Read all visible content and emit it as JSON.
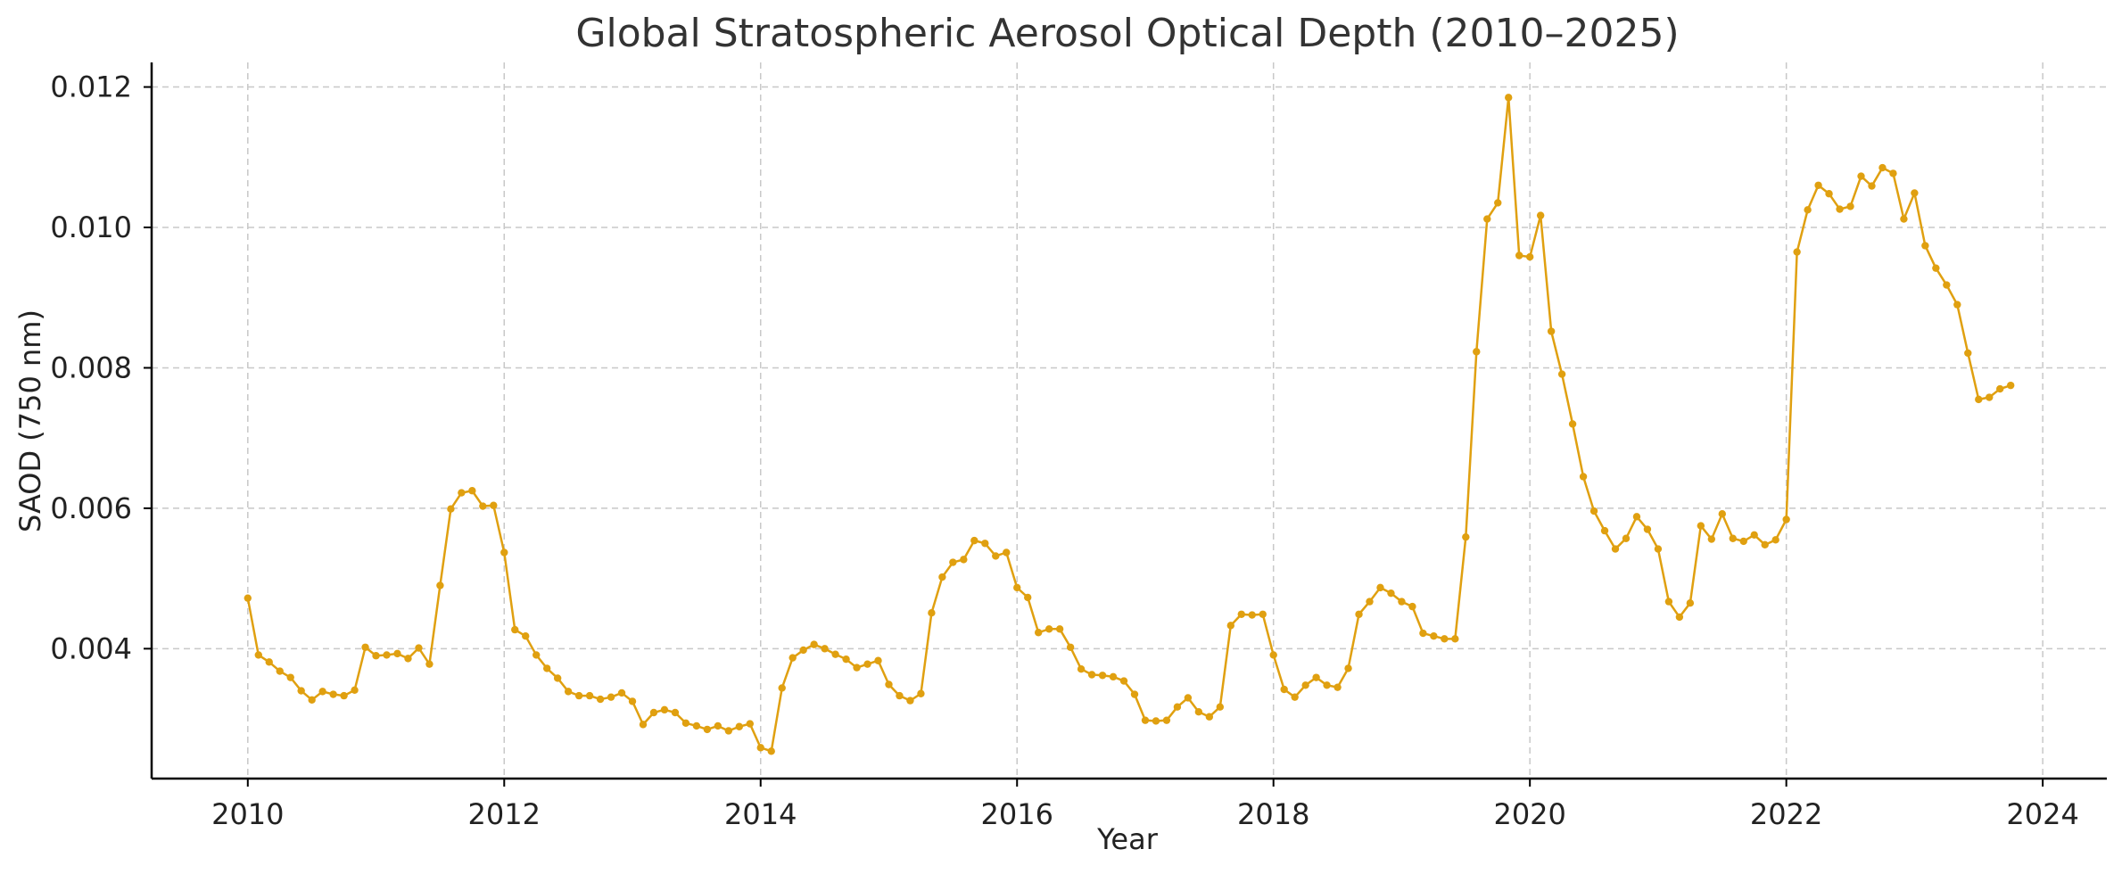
{
  "chart_data": {
    "type": "line",
    "title": "Global Stratospheric Aerosol Optical Depth (2010–2025)",
    "xlabel": "Year",
    "ylabel": "SAOD (750 nm)",
    "xlim": [
      "2009-04",
      "2024-07"
    ],
    "ylim": [
      0.00215,
      0.01235
    ],
    "x_ticks": [
      "2010",
      "2012",
      "2014",
      "2016",
      "2018",
      "2020",
      "2022",
      "2024"
    ],
    "y_ticks": [
      "0.004",
      "0.006",
      "0.008",
      "0.010",
      "0.012"
    ],
    "grid": true,
    "legend": "none",
    "color": "#E0A010",
    "series": [
      {
        "start": "2010-01",
        "frequency": "monthly",
        "x": [
          "2010-01",
          "2010-02",
          "2010-03",
          "2010-04",
          "2010-05",
          "2010-06",
          "2010-07",
          "2010-08",
          "2010-09",
          "2010-10",
          "2010-11",
          "2010-12",
          "2011-01",
          "2011-02",
          "2011-03",
          "2011-04",
          "2011-05",
          "2011-06",
          "2011-07",
          "2011-08",
          "2011-09",
          "2011-10",
          "2011-11",
          "2011-12",
          "2012-01",
          "2012-02",
          "2012-03",
          "2012-04",
          "2012-05",
          "2012-06",
          "2012-07",
          "2012-08",
          "2012-09",
          "2012-10",
          "2012-11",
          "2012-12",
          "2013-01",
          "2013-02",
          "2013-03",
          "2013-04",
          "2013-05",
          "2013-06",
          "2013-07",
          "2013-08",
          "2013-09",
          "2013-10",
          "2013-11",
          "2013-12",
          "2014-01",
          "2014-02",
          "2014-03",
          "2014-04",
          "2014-05",
          "2014-06",
          "2014-07",
          "2014-08",
          "2014-09",
          "2014-10",
          "2014-11",
          "2014-12",
          "2015-01",
          "2015-02",
          "2015-03",
          "2015-04",
          "2015-05",
          "2015-06",
          "2015-07",
          "2015-08",
          "2015-09",
          "2015-10",
          "2015-11",
          "2015-12",
          "2016-01",
          "2016-02",
          "2016-03",
          "2016-04",
          "2016-05",
          "2016-06",
          "2016-07",
          "2016-08",
          "2016-09",
          "2016-10",
          "2016-11",
          "2016-12",
          "2017-01",
          "2017-02",
          "2017-03",
          "2017-04",
          "2017-05",
          "2017-06",
          "2017-07",
          "2017-08",
          "2017-09",
          "2017-10",
          "2017-11",
          "2017-12",
          "2018-01",
          "2018-02",
          "2018-03",
          "2018-04",
          "2018-05",
          "2018-06",
          "2018-07",
          "2018-08",
          "2018-09",
          "2018-10",
          "2018-11",
          "2018-12",
          "2019-01",
          "2019-02",
          "2019-03",
          "2019-04",
          "2019-05",
          "2019-06",
          "2019-07",
          "2019-08",
          "2019-09",
          "2019-10",
          "2019-11",
          "2019-12",
          "2020-01",
          "2020-02",
          "2020-03",
          "2020-04",
          "2020-05",
          "2020-06",
          "2020-07",
          "2020-08",
          "2020-09",
          "2020-10",
          "2020-11",
          "2020-12",
          "2021-01",
          "2021-02",
          "2021-03",
          "2021-04",
          "2021-05",
          "2021-06",
          "2021-07",
          "2021-08",
          "2021-09",
          "2021-10",
          "2021-11",
          "2021-12",
          "2022-01",
          "2022-02",
          "2022-03",
          "2022-04",
          "2022-05",
          "2022-06",
          "2022-07",
          "2022-08",
          "2022-09",
          "2022-10",
          "2022-11",
          "2022-12",
          "2023-01",
          "2023-02",
          "2023-03",
          "2023-04",
          "2023-05",
          "2023-06",
          "2023-07",
          "2023-08",
          "2023-09",
          "2023-10"
        ],
        "values": [
          0.00472,
          0.00391,
          0.00381,
          0.00368,
          0.00359,
          0.0034,
          0.00327,
          0.00339,
          0.00335,
          0.00333,
          0.00341,
          0.00402,
          0.0039,
          0.00391,
          0.00393,
          0.00386,
          0.00401,
          0.00378,
          0.0049,
          0.00599,
          0.00622,
          0.00625,
          0.00603,
          0.00604,
          0.00537,
          0.00427,
          0.00418,
          0.00391,
          0.00372,
          0.00358,
          0.00339,
          0.00333,
          0.00333,
          0.00328,
          0.00331,
          0.00337,
          0.00325,
          0.00292,
          0.00309,
          0.00313,
          0.00309,
          0.00294,
          0.0029,
          0.00285,
          0.0029,
          0.00283,
          0.00289,
          0.00293,
          0.00259,
          0.00254,
          0.00344,
          0.00387,
          0.00398,
          0.00406,
          0.004,
          0.00392,
          0.00385,
          0.00373,
          0.00378,
          0.00383,
          0.00349,
          0.00333,
          0.00326,
          0.00336,
          0.00451,
          0.00502,
          0.00523,
          0.00527,
          0.00554,
          0.0055,
          0.00532,
          0.00537,
          0.00487,
          0.00473,
          0.00423,
          0.00428,
          0.00428,
          0.00402,
          0.00371,
          0.00363,
          0.00362,
          0.0036,
          0.00354,
          0.00335,
          0.00298,
          0.00297,
          0.00298,
          0.00317,
          0.0033,
          0.0031,
          0.00303,
          0.00317,
          0.00433,
          0.00449,
          0.00448,
          0.00449,
          0.00391,
          0.00342,
          0.00331,
          0.00348,
          0.00359,
          0.00348,
          0.00345,
          0.00372,
          0.00449,
          0.00467,
          0.00487,
          0.00479,
          0.00467,
          0.0046,
          0.00422,
          0.00418,
          0.00414,
          0.00414,
          0.00559,
          0.00823,
          0.01012,
          0.01035,
          0.01185,
          0.0096,
          0.00958,
          0.01017,
          0.00852,
          0.00791,
          0.0072,
          0.00645,
          0.00596,
          0.00568,
          0.00542,
          0.00557,
          0.00588,
          0.0057,
          0.00542,
          0.00467,
          0.00445,
          0.00465,
          0.00575,
          0.00556,
          0.00592,
          0.00557,
          0.00553,
          0.00562,
          0.00548,
          0.00555,
          0.00584,
          0.00965,
          0.01025,
          0.0106,
          0.01048,
          0.01026,
          0.0103,
          0.01073,
          0.01059,
          0.01085,
          0.01077,
          0.01012,
          0.01049,
          0.00974,
          0.00942,
          0.00918,
          0.0089,
          0.00821,
          0.00755,
          0.00758,
          0.0077,
          0.00775
        ]
      }
    ]
  }
}
